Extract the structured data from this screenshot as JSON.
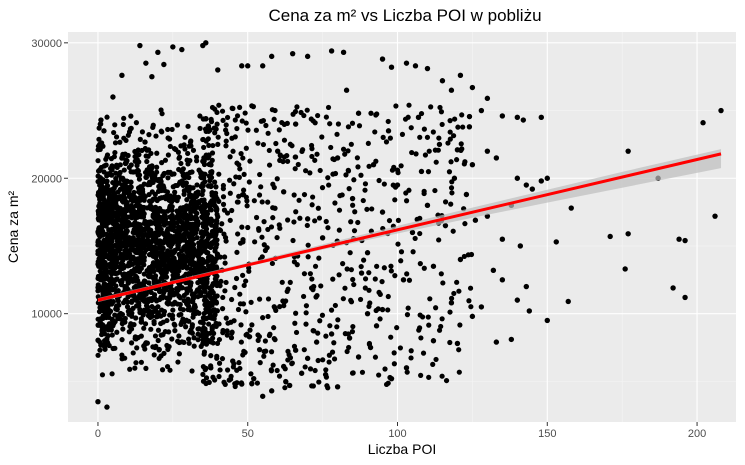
{
  "chart_data": {
    "type": "scatter",
    "title": "Cena za m² vs Liczba POI w pobliżu",
    "xlabel": "Liczba POI",
    "ylabel": "Cena za m²",
    "xlim": [
      -10,
      213
    ],
    "ylim": [
      2000,
      30800
    ],
    "x_ticks": [
      0,
      50,
      100,
      150,
      200
    ],
    "x_tick_labels": [
      "0",
      "50",
      "100",
      "150",
      "200"
    ],
    "y_ticks": [
      10000,
      20000,
      30000
    ],
    "y_tick_labels": [
      "10000",
      "20000",
      "30000"
    ],
    "grid": true,
    "legend": "none",
    "colors": {
      "points": "#000000",
      "trend_line": "#ff0000",
      "confidence_band": "#bdbdbd",
      "panel_background": "#ebebeb",
      "grid": "#ffffff"
    },
    "points_note": "dense cloud; highlighted outliers listed below",
    "points": [
      [
        0,
        3500
      ],
      [
        3,
        3100
      ],
      [
        1,
        24300
      ],
      [
        2,
        23500
      ],
      [
        5,
        26000
      ],
      [
        8,
        27600
      ],
      [
        14,
        29800
      ],
      [
        16,
        28500
      ],
      [
        18,
        27500
      ],
      [
        20,
        29300
      ],
      [
        25,
        29700
      ],
      [
        28,
        29500
      ],
      [
        35,
        29800
      ],
      [
        36,
        30000
      ],
      [
        22,
        28400
      ],
      [
        40,
        28000
      ],
      [
        48,
        28300
      ],
      [
        50,
        28300
      ],
      [
        55,
        28300
      ],
      [
        58,
        29000
      ],
      [
        65,
        29200
      ],
      [
        70,
        29000
      ],
      [
        78,
        29400
      ],
      [
        82,
        29300
      ],
      [
        95,
        28800
      ],
      [
        98,
        28200
      ],
      [
        103,
        28500
      ],
      [
        106,
        28300
      ],
      [
        110,
        28100
      ],
      [
        115,
        27200
      ],
      [
        118,
        26500
      ],
      [
        121,
        27600
      ],
      [
        125,
        26700
      ],
      [
        130,
        25900
      ],
      [
        128,
        25000
      ],
      [
        135,
        24600
      ],
      [
        140,
        24500
      ],
      [
        142,
        24300
      ],
      [
        148,
        24500
      ],
      [
        130,
        22000
      ],
      [
        133,
        21500
      ],
      [
        120,
        22100
      ],
      [
        125,
        21000
      ],
      [
        140,
        20000
      ],
      [
        143,
        19500
      ],
      [
        145,
        19200
      ],
      [
        150,
        20000
      ],
      [
        148,
        19800
      ],
      [
        138,
        18000
      ],
      [
        130,
        17200
      ],
      [
        126,
        16900
      ],
      [
        135,
        15500
      ],
      [
        141,
        15000
      ],
      [
        153,
        15300
      ],
      [
        150,
        9500
      ],
      [
        143,
        12000
      ],
      [
        140,
        11000
      ],
      [
        135,
        12500
      ],
      [
        132,
        13200
      ],
      [
        128,
        10500
      ],
      [
        125,
        9800
      ],
      [
        133,
        7900
      ],
      [
        138,
        8100
      ],
      [
        144,
        10200
      ],
      [
        120,
        7800
      ],
      [
        112,
        8000
      ],
      [
        103,
        6000
      ],
      [
        98,
        5200
      ],
      [
        95,
        10300
      ],
      [
        90,
        10000
      ],
      [
        88,
        13000
      ],
      [
        93,
        9100
      ],
      [
        158,
        17800
      ],
      [
        157,
        10900
      ],
      [
        171,
        15700
      ],
      [
        176,
        13300
      ],
      [
        177,
        15900
      ],
      [
        177,
        22000
      ],
      [
        187,
        20000
      ],
      [
        192,
        11900
      ],
      [
        194,
        15500
      ],
      [
        196,
        15400
      ],
      [
        196,
        11200
      ],
      [
        202,
        24100
      ],
      [
        206,
        17200
      ],
      [
        208,
        25000
      ],
      [
        60,
        22000
      ],
      [
        62,
        19000
      ],
      [
        66,
        24000
      ],
      [
        70,
        17000
      ],
      [
        72,
        12000
      ],
      [
        75,
        15600
      ],
      [
        78,
        8500
      ],
      [
        80,
        21500
      ],
      [
        83,
        26500
      ],
      [
        85,
        18500
      ],
      [
        87,
        24800
      ],
      [
        90,
        14500
      ],
      [
        92,
        21000
      ],
      [
        95,
        17500
      ],
      [
        97,
        23500
      ],
      [
        100,
        19500
      ],
      [
        102,
        12500
      ],
      [
        105,
        16000
      ],
      [
        107,
        24500
      ],
      [
        108,
        20500
      ],
      [
        110,
        18000
      ],
      [
        112,
        13500
      ],
      [
        114,
        22500
      ],
      [
        116,
        16500
      ],
      [
        118,
        10800
      ],
      [
        119,
        20000
      ],
      [
        121,
        14000
      ],
      [
        123,
        18800
      ],
      [
        124,
        23800
      ],
      [
        45,
        6500
      ],
      [
        48,
        4800
      ],
      [
        52,
        5200
      ],
      [
        55,
        3900
      ],
      [
        58,
        4300
      ],
      [
        62,
        6100
      ],
      [
        64,
        4700
      ],
      [
        66,
        7300
      ],
      [
        68,
        5600
      ],
      [
        70,
        6700
      ],
      [
        73,
        7900
      ],
      [
        76,
        5500
      ],
      [
        80,
        4600
      ],
      [
        84,
        8200
      ],
      [
        87,
        6800
      ],
      [
        91,
        7500
      ]
    ],
    "dense_region": {
      "x_range": [
        0,
        40
      ],
      "y_range": [
        4000,
        26000
      ]
    },
    "trend_line": {
      "x": [
        0,
        208
      ],
      "y": [
        11000,
        21800
      ]
    },
    "confidence_band": {
      "x": [
        0,
        25,
        50,
        75,
        100,
        125,
        150,
        175,
        208
      ],
      "lower": [
        10850,
        12200,
        13480,
        14730,
        15920,
        17080,
        18200,
        19300,
        20750
      ],
      "upper": [
        11150,
        12450,
        13760,
        15120,
        16480,
        17830,
        19150,
        20470,
        22150
      ]
    }
  }
}
